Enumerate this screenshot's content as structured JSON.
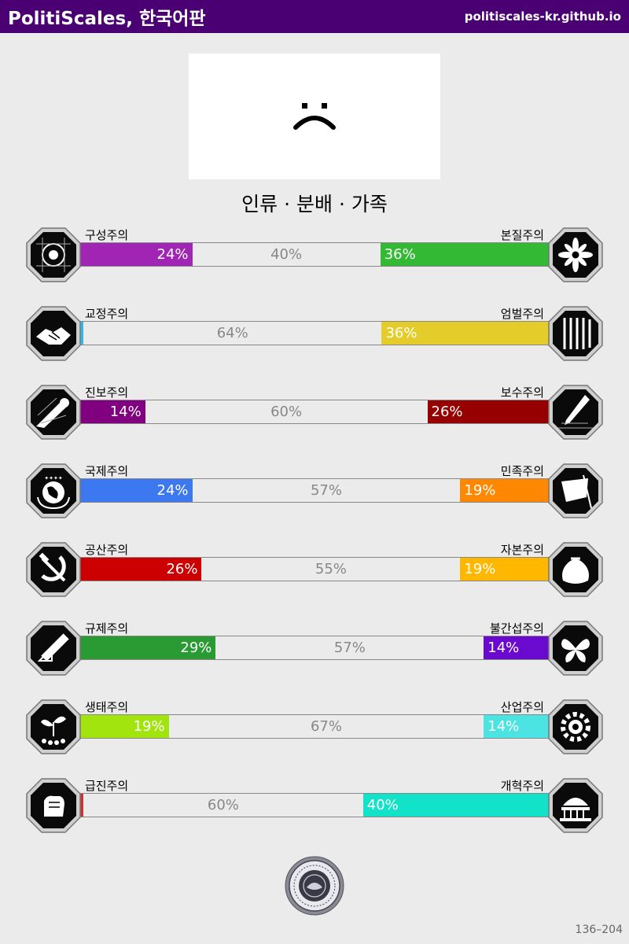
{
  "header": {
    "title": "PolitiScales, 한국어판",
    "url": "politiscales-kr.github.io"
  },
  "result": {
    "face": "sad-face",
    "ideology": "인류 · 분배 · 가족"
  },
  "axes": [
    {
      "left_label": "구성주의",
      "right_label": "본질주의",
      "left_value": 24,
      "mid_value": 40,
      "right_value": 36,
      "left_text": "24%",
      "mid_text": "40%",
      "right_text": "36%",
      "left_color": "#a125b5",
      "right_color": "#33b933",
      "left_icon": "eye-icon",
      "right_icon": "flower-icon"
    },
    {
      "left_label": "교정주의",
      "right_label": "엄벌주의",
      "left_value": 0,
      "mid_value": 64,
      "right_value": 36,
      "left_text": "",
      "mid_text": "64%",
      "right_text": "36%",
      "left_color": "#33b8e3",
      "right_color": "#e4cd2a",
      "left_icon": "handshake-icon",
      "right_icon": "prison-bars-icon"
    },
    {
      "left_label": "진보주의",
      "right_label": "보수주의",
      "left_value": 14,
      "mid_value": 60,
      "right_value": 26,
      "left_text": "14%",
      "mid_text": "60%",
      "right_text": "26%",
      "left_color": "#800080",
      "right_color": "#960000",
      "left_icon": "comet-icon",
      "right_icon": "quill-icon"
    },
    {
      "left_label": "국제주의",
      "right_label": "민족주의",
      "left_value": 24,
      "mid_value": 57,
      "right_value": 19,
      "left_text": "24%",
      "mid_text": "57%",
      "right_text": "19%",
      "left_color": "#3c78f0",
      "right_color": "#ff8800",
      "left_icon": "globe-icon",
      "right_icon": "flag-icon"
    },
    {
      "left_label": "공산주의",
      "right_label": "자본주의",
      "left_value": 26,
      "mid_value": 55,
      "right_value": 19,
      "left_text": "26%",
      "mid_text": "55%",
      "right_text": "19%",
      "left_color": "#cc0000",
      "right_color": "#ffb700",
      "left_icon": "hammer-sickle-icon",
      "right_icon": "money-bag-icon"
    },
    {
      "left_label": "규제주의",
      "right_label": "불간섭주의",
      "left_value": 29,
      "mid_value": 57,
      "right_value": 14,
      "left_text": "29%",
      "mid_text": "57%",
      "right_text": "14%",
      "left_color": "#2a9a33",
      "right_color": "#6a0acf",
      "left_icon": "ruler-icon",
      "right_icon": "butterfly-icon"
    },
    {
      "left_label": "생태주의",
      "right_label": "산업주의",
      "left_value": 19,
      "mid_value": 67,
      "right_value": 14,
      "left_text": "19%",
      "mid_text": "67%",
      "right_text": "14%",
      "left_color": "#a2e50e",
      "right_color": "#4ce3e3",
      "left_icon": "sprout-icon",
      "right_icon": "gear-icon"
    },
    {
      "left_label": "급진주의",
      "right_label": "개혁주의",
      "left_value": 0,
      "mid_value": 60,
      "right_value": 40,
      "left_text": "",
      "mid_text": "60%",
      "right_text": "40%",
      "left_color": "#cc3333",
      "right_color": "#12e2c8",
      "left_icon": "fist-icon",
      "right_icon": "parliament-icon"
    }
  ],
  "seal": "seal-icon",
  "footer": {
    "code": "136–204"
  }
}
